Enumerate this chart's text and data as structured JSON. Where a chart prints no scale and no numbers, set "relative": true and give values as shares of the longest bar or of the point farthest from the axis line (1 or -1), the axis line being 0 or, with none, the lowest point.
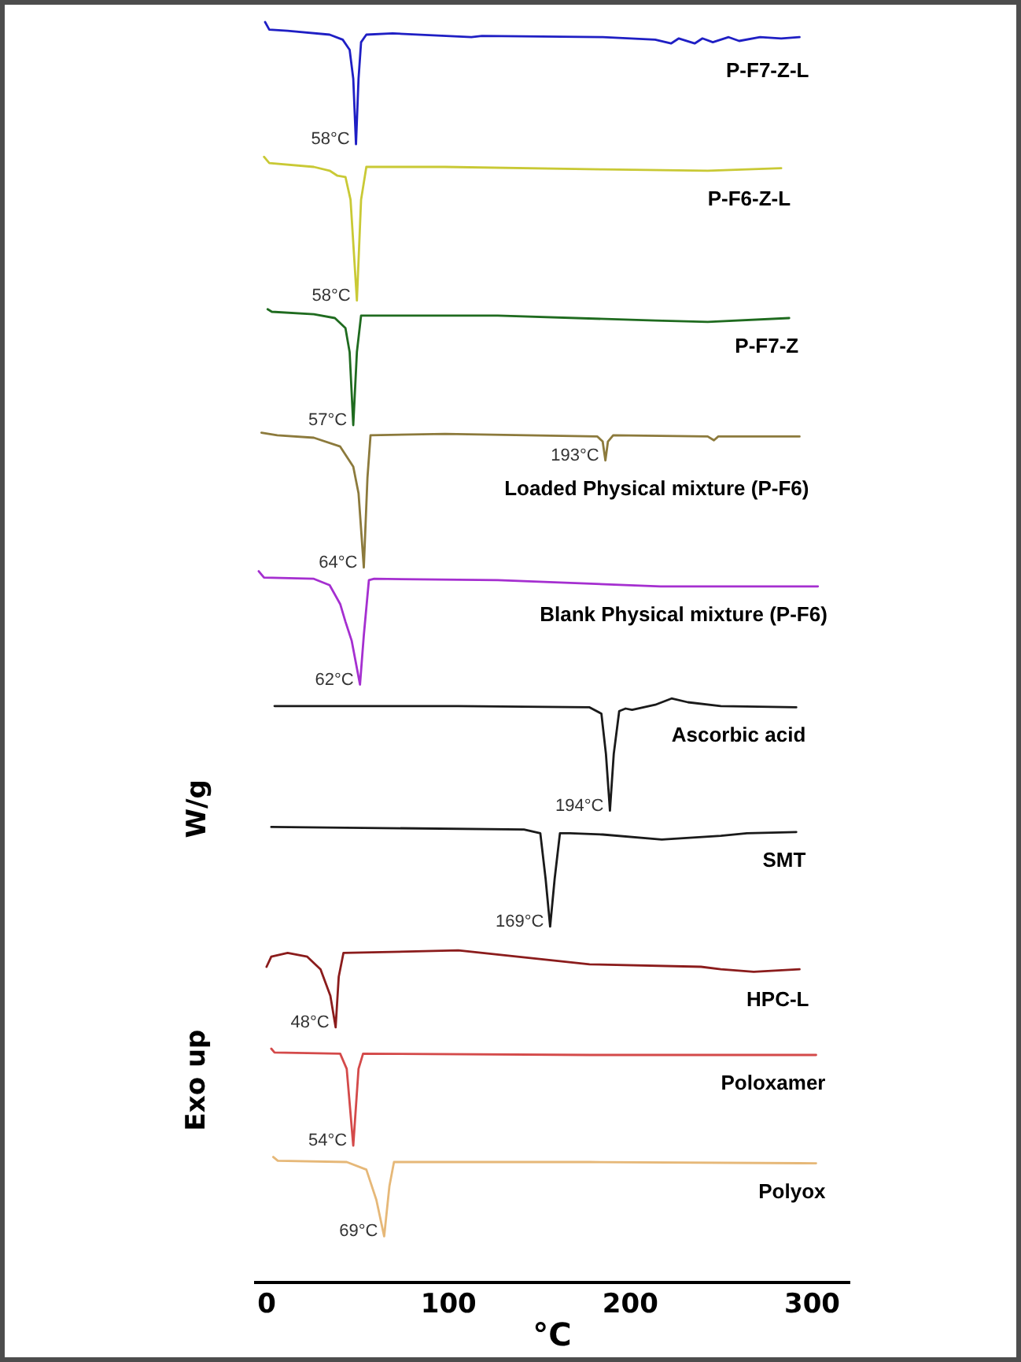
{
  "chart_data": {
    "type": "line",
    "relative": true,
    "xlabel": "°C",
    "ylabel": "W/g",
    "xlim": [
      -7,
      321
    ],
    "xticks": [
      0,
      100,
      200,
      300
    ],
    "series": [
      {
        "name": "P-F7-Z-L",
        "color": "#1f1fc4",
        "x": [
          -0.5,
          1.8,
          11.9,
          35.0,
          42.2,
          46.0,
          48.0,
          49.5,
          50.9,
          52.3,
          55.2,
          69.7,
          113,
          118.8,
          185.2,
          214.1,
          222.8,
          227.1,
          235.8,
          240.1,
          245.8,
          254.5,
          260.3,
          271.8,
          283.4,
          293.5
        ],
        "values": [
          1.0,
          0.994,
          0.993,
          0.99,
          0.986,
          0.978,
          0.955,
          0.903,
          0.955,
          0.984,
          0.99,
          0.991,
          0.988,
          0.989,
          0.988,
          0.986,
          0.983,
          0.987,
          0.983,
          0.987,
          0.984,
          0.988,
          0.985,
          0.988,
          0.987,
          0.988
        ]
      },
      {
        "name": "P-F6-Z-L",
        "color": "#c9c935",
        "x": [
          -1.1,
          1.8,
          26.3,
          35.0,
          39.3,
          43.7,
          46.5,
          50.0,
          52.3,
          55.2,
          98.5,
          185.2,
          243,
          283.4
        ],
        "values": [
          0.893,
          0.888,
          0.885,
          0.882,
          0.878,
          0.877,
          0.859,
          0.779,
          0.859,
          0.885,
          0.885,
          0.883,
          0.882,
          0.884
        ]
      },
      {
        "name": "P-F7-Z",
        "color": "#1f6b1f",
        "x": [
          0.9,
          3.2,
          26.3,
          37.9,
          43.7,
          46.0,
          48.0,
          50.0,
          52.3,
          58.1,
          127.5,
          214.1,
          243,
          287.8
        ],
        "values": [
          0.772,
          0.77,
          0.768,
          0.765,
          0.757,
          0.738,
          0.68,
          0.738,
          0.767,
          0.767,
          0.767,
          0.763,
          0.762,
          0.765
        ]
      },
      {
        "name": "Loaded Physical mixture (P-F6)",
        "color": "#8c7a3c",
        "x": [
          -2.5,
          6.2,
          26.3,
          40.8,
          48.0,
          50.9,
          53.8,
          55.8,
          57.5,
          98.5,
          182.3,
          185.2,
          186.7,
          188.1,
          191,
          243,
          246.4,
          248.8,
          293.5
        ],
        "values": [
          0.674,
          0.672,
          0.67,
          0.663,
          0.647,
          0.626,
          0.567,
          0.638,
          0.672,
          0.673,
          0.671,
          0.667,
          0.652,
          0.667,
          0.672,
          0.671,
          0.668,
          0.671,
          0.671
        ]
      },
      {
        "name": "Blank Physical mixture (P-F6)",
        "color": "#a52fd0",
        "x": [
          -4.0,
          -1.1,
          26.3,
          35.0,
          40.8,
          43.7,
          47.1,
          51.7,
          53.8,
          56.6,
          59.5,
          127.5,
          217,
          303.6
        ],
        "values": [
          0.564,
          0.559,
          0.558,
          0.553,
          0.538,
          0.524,
          0.509,
          0.474,
          0.513,
          0.557,
          0.558,
          0.557,
          0.552,
          0.552
        ]
      },
      {
        "name": "Ascorbic acid",
        "color": "#1a1a1a",
        "x": [
          4.7,
          105.8,
          178,
          184.5,
          187,
          189.2,
          191.3,
          194.3,
          197.8,
          201.4,
          214.1,
          223.1,
          232.1,
          250.2,
          291.7
        ],
        "values": [
          0.457,
          0.457,
          0.456,
          0.451,
          0.419,
          0.374,
          0.419,
          0.453,
          0.455,
          0.454,
          0.458,
          0.463,
          0.46,
          0.457,
          0.456
        ]
      },
      {
        "name": "SMT",
        "color": "#1a1a1a",
        "x": [
          2.9,
          141.9,
          150.9,
          153.8,
          156.3,
          158.8,
          161.7,
          167.2,
          185.2,
          217.7,
          250.2,
          264.6,
          291.7
        ],
        "values": [
          0.361,
          0.359,
          0.356,
          0.32,
          0.282,
          0.32,
          0.356,
          0.356,
          0.355,
          0.351,
          0.354,
          0.356,
          0.357
        ]
      },
      {
        "name": "HPC-L",
        "color": "#8b1c1c",
        "x": [
          0.3,
          2.9,
          11.9,
          22.7,
          30.0,
          35.4,
          38.3,
          40.0,
          42.6,
          105.8,
          178,
          239.3,
          250.2,
          268.3,
          293.5
        ],
        "values": [
          0.25,
          0.258,
          0.261,
          0.258,
          0.248,
          0.227,
          0.202,
          0.242,
          0.261,
          0.263,
          0.252,
          0.25,
          0.248,
          0.246,
          0.248
        ]
      },
      {
        "name": "Poloxamer",
        "color": "#d44a4a",
        "x": [
          2.9,
          4.7,
          40.8,
          44.4,
          48.0,
          50.9,
          53.4,
          178,
          302.6
        ],
        "values": [
          0.185,
          0.182,
          0.181,
          0.169,
          0.108,
          0.169,
          0.181,
          0.18,
          0.18
        ]
      },
      {
        "name": "Polyox",
        "color": "#e6b878",
        "x": [
          4.0,
          6.5,
          44.4,
          55.2,
          60.7,
          65.0,
          67.9,
          70.4,
          178,
          302.6
        ],
        "values": [
          0.099,
          0.096,
          0.095,
          0.089,
          0.065,
          0.036,
          0.076,
          0.095,
          0.095,
          0.094
        ]
      }
    ],
    "annotations": [
      {
        "text": "58°C",
        "x": 49.5,
        "y": 0.903
      },
      {
        "text": "58°C",
        "x": 50.0,
        "y": 0.779
      },
      {
        "text": "57°C",
        "x": 48.0,
        "y": 0.68
      },
      {
        "text": "64°C",
        "x": 53.8,
        "y": 0.567
      },
      {
        "text": "193°C",
        "x": 186.7,
        "y": 0.652
      },
      {
        "text": "62°C",
        "x": 51.7,
        "y": 0.474
      },
      {
        "text": "194°C",
        "x": 189.2,
        "y": 0.374
      },
      {
        "text": "169°C",
        "x": 156.3,
        "y": 0.282
      },
      {
        "text": "48°C",
        "x": 38.3,
        "y": 0.202
      },
      {
        "text": "54°C",
        "x": 48.0,
        "y": 0.108
      },
      {
        "text": "69°C",
        "x": 65.0,
        "y": 0.036
      },
      "Exo up"
    ]
  }
}
